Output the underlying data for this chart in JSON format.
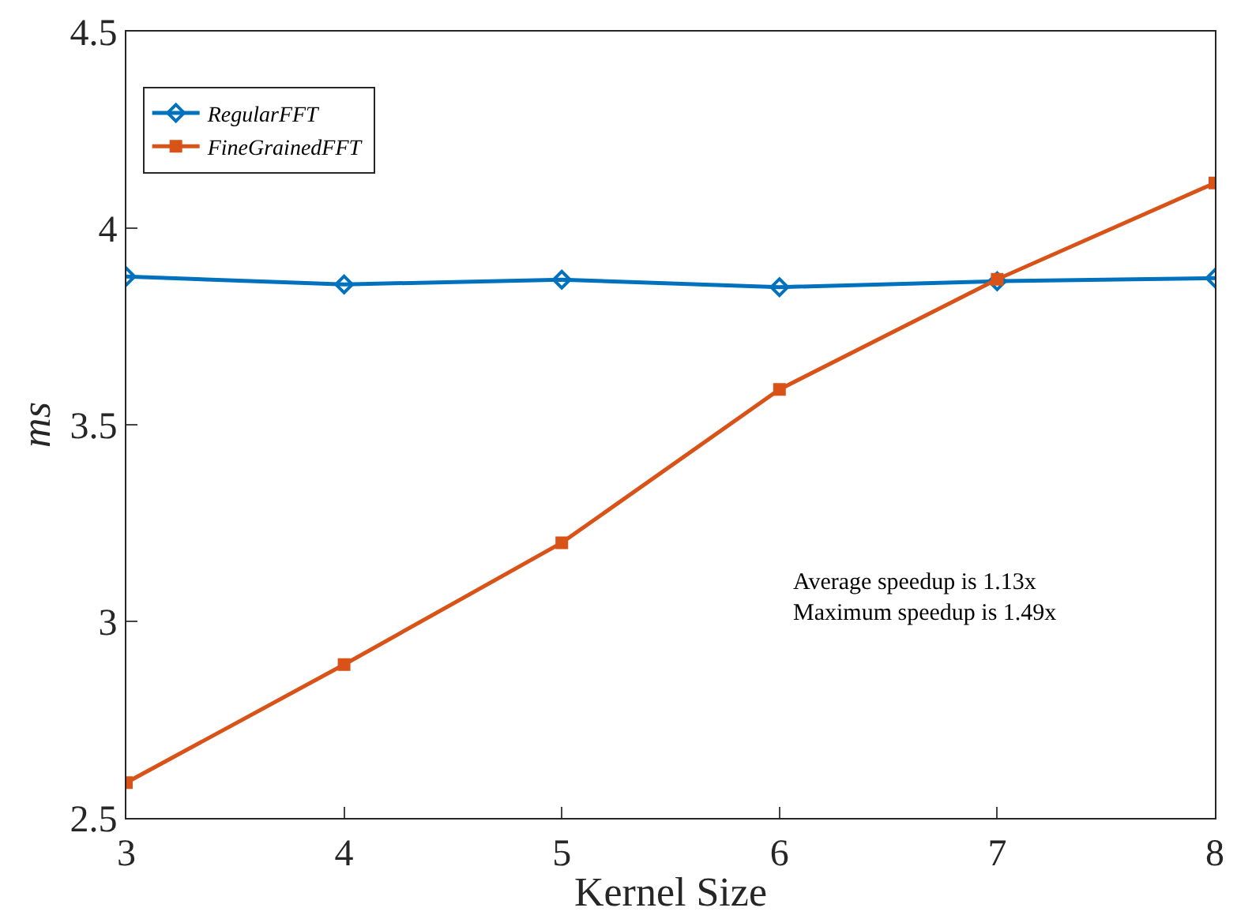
{
  "chart_data": {
    "type": "line",
    "xlabel": "Kernel Size",
    "ylabel": "ms",
    "x": [
      3,
      4,
      5,
      6,
      7,
      8
    ],
    "series": [
      {
        "name": "RegularFFT",
        "color": "#0072bd",
        "marker": "diamond",
        "values": [
          3.877,
          3.857,
          3.869,
          3.85,
          3.865,
          3.873
        ]
      },
      {
        "name": "FineGrainedFFT",
        "color": "#d95319",
        "marker": "square",
        "values": [
          2.59,
          2.89,
          3.2,
          3.59,
          3.87,
          4.115
        ]
      }
    ],
    "xlim": [
      3,
      8
    ],
    "xticks": [
      3,
      4,
      5,
      6,
      7,
      8
    ],
    "ylim": [
      2.5,
      4.5
    ],
    "yticks": [
      2.5,
      3,
      3.5,
      4,
      4.5
    ],
    "annotations": [
      "Average speedup is 1.13x\nMaximum speedup is 1.49x"
    ],
    "legend": "top left",
    "line_style": "solid"
  }
}
